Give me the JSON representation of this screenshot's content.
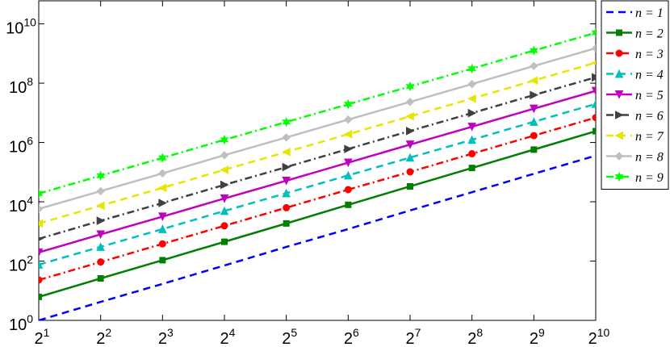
{
  "chart_data": {
    "type": "line",
    "xscale": "log",
    "yscale": "log",
    "xlim": [
      2,
      1024
    ],
    "ylim": [
      1,
      60000000000
    ],
    "xticks": [
      {
        "value": 2,
        "base": "2",
        "exponent": "1"
      },
      {
        "value": 4,
        "base": "2",
        "exponent": "2"
      },
      {
        "value": 8,
        "base": "2",
        "exponent": "3"
      },
      {
        "value": 16,
        "base": "2",
        "exponent": "4"
      },
      {
        "value": 32,
        "base": "2",
        "exponent": "5"
      },
      {
        "value": 64,
        "base": "2",
        "exponent": "6"
      },
      {
        "value": 128,
        "base": "2",
        "exponent": "7"
      },
      {
        "value": 256,
        "base": "2",
        "exponent": "8"
      },
      {
        "value": 512,
        "base": "2",
        "exponent": "9"
      },
      {
        "value": 1024,
        "base": "2",
        "exponent": "10"
      }
    ],
    "yticks": [
      {
        "value": 1,
        "base": "10",
        "exponent": "0"
      },
      {
        "value": 100,
        "base": "10",
        "exponent": "2"
      },
      {
        "value": 10000,
        "base": "10",
        "exponent": "4"
      },
      {
        "value": 1000000,
        "base": "10",
        "exponent": "6"
      },
      {
        "value": 100000000,
        "base": "10",
        "exponent": "8"
      },
      {
        "value": 10000000000,
        "base": "10",
        "exponent": "10"
      }
    ],
    "x": [
      2,
      4,
      8,
      16,
      32,
      64,
      128,
      256,
      512,
      1024
    ],
    "legend": "outside-right",
    "series": [
      {
        "name": "n = 1",
        "color": "#0000ff",
        "dash": "dashed",
        "marker": "none",
        "values": [
          1,
          4.2,
          17,
          71,
          300,
          1200,
          5100,
          21000,
          88000,
          360000
        ]
      },
      {
        "name": "n = 2",
        "color": "#008000",
        "dash": "solid",
        "marker": "square",
        "values": [
          6.2,
          26,
          107,
          447,
          1860,
          7900,
          33000,
          138000,
          575000,
          2400000
        ]
      },
      {
        "name": "n = 3",
        "color": "#ff0000",
        "dash": "dashdot",
        "marker": "circle",
        "values": [
          23,
          93,
          380,
          1550,
          6300,
          25700,
          102000,
          417000,
          1700000,
          6900000
        ]
      },
      {
        "name": "n = 4",
        "color": "#00bfbf",
        "dash": "dashed",
        "marker": "triangle-up",
        "values": [
          76,
          302,
          1200,
          4900,
          19500,
          77600,
          309000,
          1230000,
          5000000,
          20000000
        ]
      },
      {
        "name": "n = 5",
        "color": "#bf00bf",
        "dash": "solid",
        "marker": "triangle-down",
        "values": [
          195,
          794,
          3160,
          12900,
          51300,
          209000,
          851000,
          3390000,
          13800000,
          55000000
        ]
      },
      {
        "name": "n = 6",
        "color": "#404040",
        "dash": "dashdot",
        "marker": "triangle-right",
        "values": [
          562,
          2290,
          9100,
          37200,
          148000,
          603000,
          2450000,
          9800000,
          39800000,
          158000000
        ]
      },
      {
        "name": "n = 7",
        "color": "#e6e600",
        "dash": "dashed",
        "marker": "triangle-left",
        "values": [
          1860,
          7400,
          29500,
          120000,
          479000,
          1900000,
          7600000,
          30200000,
          123000000,
          490000000
        ]
      },
      {
        "name": "n = 8",
        "color": "#bfbfbf",
        "dash": "solid",
        "marker": "diamond",
        "values": [
          5750,
          22900,
          91200,
          372000,
          1480000,
          5900000,
          23400000,
          93300000,
          380000000,
          1510000000
        ]
      },
      {
        "name": "n = 9",
        "color": "#00ff00",
        "dash": "dashdot",
        "marker": "star",
        "values": [
          19000,
          75900,
          302000,
          1230000,
          4900000,
          19500000,
          77600000,
          309000000,
          1260000000,
          5000000000
        ]
      }
    ]
  }
}
